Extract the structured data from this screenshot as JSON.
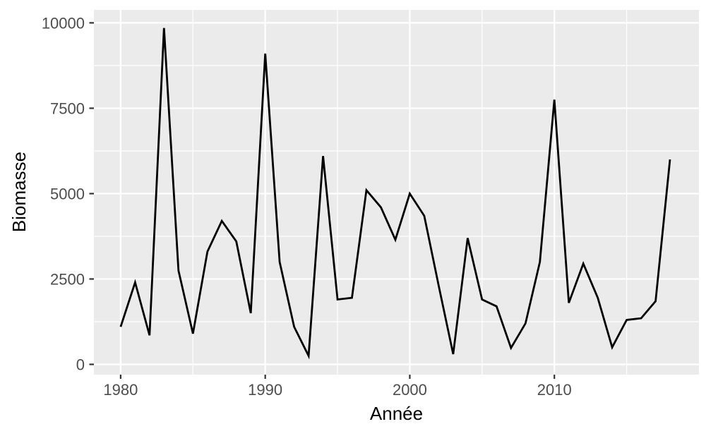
{
  "figure": {
    "background_color": "#FFFFFF",
    "panel_background_color": "#EBEBEB",
    "gridline_color": "#FFFFFF",
    "tick_mark_color": "#333333",
    "tick_label_color": "#4D4D4D",
    "axis_title_color": "#000000",
    "series_line_color": "#000000"
  },
  "chart_data": {
    "type": "line",
    "title": "",
    "xlabel": "Année",
    "ylabel": "Biomasse",
    "style": "ggplot2",
    "grid": true,
    "legend": false,
    "x": [
      1980,
      1981,
      1982,
      1983,
      1984,
      1985,
      1986,
      1987,
      1988,
      1989,
      1990,
      1991,
      1992,
      1993,
      1994,
      1995,
      1996,
      1997,
      1998,
      1999,
      2000,
      2001,
      2002,
      2003,
      2004,
      2005,
      2006,
      2007,
      2008,
      2009,
      2010,
      2011,
      2012,
      2013,
      2014,
      2015,
      2016,
      2017,
      2018
    ],
    "series": [
      {
        "name": "Biomasse",
        "values": [
          1100,
          2400,
          850,
          9850,
          2750,
          900,
          3300,
          4200,
          3600,
          1500,
          9100,
          3000,
          1100,
          250,
          6100,
          1900,
          1950,
          5100,
          4600,
          3650,
          5000,
          4350,
          2300,
          300,
          3700,
          1900,
          1700,
          480,
          1200,
          3000,
          7750,
          1800,
          2950,
          1950,
          500,
          1300,
          1350,
          1850,
          6000
        ]
      }
    ],
    "x_ticks": [
      1980,
      1990,
      2000,
      2010
    ],
    "x_tick_labels": [
      "1980",
      "1990",
      "2000",
      "2010"
    ],
    "x_minor_ticks": [
      1985,
      1995,
      2005,
      2015
    ],
    "y_ticks": [
      0,
      2500,
      5000,
      7500,
      10000
    ],
    "y_tick_labels": [
      "0",
      "2500",
      "5000",
      "7500",
      "10000"
    ],
    "y_minor_ticks": [
      1250,
      3750,
      6250,
      8750
    ],
    "xlim": [
      1978.15,
      2020.0
    ],
    "ylim": [
      -300,
      10380
    ]
  }
}
